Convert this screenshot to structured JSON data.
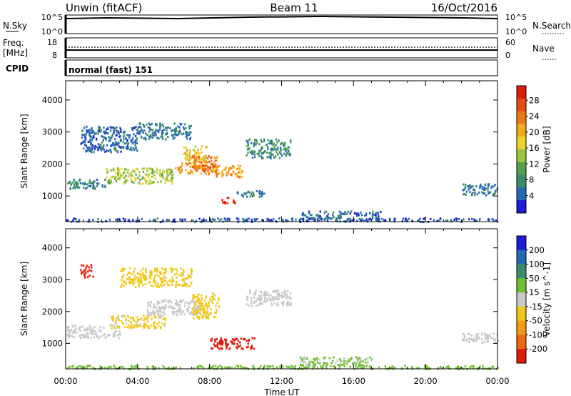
{
  "header": {
    "station": "Unwin (fitACF)",
    "beam": "Beam 11",
    "date": "16/Oct/2016"
  },
  "noise_panel": {
    "left_label": "N.Sky",
    "right_label": "N.Search",
    "y_ticks": [
      "10^5",
      "10^0"
    ]
  },
  "freq_panel": {
    "left_label_1": "Freq.",
    "left_label_2": "[MHz]",
    "left_ticks": [
      "18",
      "8"
    ],
    "right_label": "Nave",
    "right_ticks": [
      "60",
      "0"
    ]
  },
  "cpid_panel": {
    "label": "CPID",
    "mode": "normal (fast) 151"
  },
  "chart_data": [
    {
      "type": "heatmap",
      "ylabel": "Slant Range [km]",
      "xlabel": "Time UT",
      "x_ticks": [
        "00:00",
        "04:00",
        "08:00",
        "12:00",
        "16:00",
        "20:00",
        "00:00"
      ],
      "x_range_hours": [
        0,
        24
      ],
      "y_ticks": [
        1000,
        2000,
        3000,
        4000
      ],
      "ylim": [
        200,
        4600
      ],
      "colorbar": {
        "label": "Power [dB]",
        "ticks": [
          "4",
          "8",
          "12",
          "16",
          "20",
          "24",
          "28"
        ],
        "range": [
          0,
          30
        ],
        "colors": [
          "#1c1cd8",
          "#2468b8",
          "#3c8c6c",
          "#54a050",
          "#9cc43c",
          "#f0d22c",
          "#f4a81c",
          "#f07814",
          "#e84c10",
          "#e01c08"
        ]
      },
      "regions": [
        {
          "t0": 0.0,
          "t1": 2.2,
          "r0": 1250,
          "r1": 1550,
          "value": 7
        },
        {
          "t0": 2.2,
          "t1": 6.0,
          "r0": 1400,
          "r1": 1900,
          "value": 14
        },
        {
          "t0": 6.0,
          "t1": 8.3,
          "r0": 1700,
          "r1": 2100,
          "value": 20
        },
        {
          "t0": 6.5,
          "t1": 7.8,
          "r0": 2100,
          "r1": 2600,
          "value": 17
        },
        {
          "t0": 7.0,
          "t1": 8.4,
          "r0": 1800,
          "r1": 2300,
          "value": 23
        },
        {
          "t0": 8.3,
          "t1": 9.8,
          "r0": 1600,
          "r1": 2000,
          "value": 20
        },
        {
          "t0": 8.6,
          "t1": 9.4,
          "r0": 800,
          "r1": 1000,
          "value": 28
        },
        {
          "t0": 0.8,
          "t1": 4.0,
          "r0": 2400,
          "r1": 3200,
          "value": 5
        },
        {
          "t0": 4.0,
          "t1": 7.0,
          "r0": 2800,
          "r1": 3300,
          "value": 6
        },
        {
          "t0": 10.0,
          "t1": 12.5,
          "r0": 2200,
          "r1": 2800,
          "value": 8
        },
        {
          "t0": 9.5,
          "t1": 11.0,
          "r0": 1000,
          "r1": 1200,
          "value": 6
        },
        {
          "t0": 13.0,
          "t1": 17.5,
          "r0": 300,
          "r1": 550,
          "value": 5
        },
        {
          "t0": 0.0,
          "t1": 24.0,
          "r0": 220,
          "r1": 330,
          "value": 4
        },
        {
          "t0": 22.0,
          "t1": 24.0,
          "r0": 1050,
          "r1": 1400,
          "value": 6
        }
      ]
    },
    {
      "type": "heatmap",
      "ylabel": "Slant Range [km]",
      "xlabel": "Time UT",
      "x_ticks": [
        "00:00",
        "04:00",
        "08:00",
        "12:00",
        "16:00",
        "20:00",
        "00:00"
      ],
      "x_range_hours": [
        0,
        24
      ],
      "y_ticks": [
        1000,
        2000,
        3000,
        4000
      ],
      "ylim": [
        200,
        4600
      ],
      "colorbar": {
        "label": "Velocity [m s^-1]",
        "ticks": [
          "200",
          "100",
          "50",
          "15",
          "-15",
          "-50",
          "-100",
          "-200"
        ],
        "range": [
          -250,
          250
        ],
        "colors": [
          "#1c1cd8",
          "#2468b8",
          "#3c8c6c",
          "#6cc030",
          "#c8c8c8",
          "#f0c81c",
          "#f49a14",
          "#f06414",
          "#e01c08"
        ]
      },
      "regions": [
        {
          "t0": 0.0,
          "t1": 3.0,
          "r0": 1200,
          "r1": 1600,
          "value": 0
        },
        {
          "t0": 2.5,
          "t1": 5.5,
          "r0": 1500,
          "r1": 1900,
          "value": -35
        },
        {
          "t0": 4.5,
          "t1": 7.5,
          "r0": 1900,
          "r1": 2400,
          "value": 0
        },
        {
          "t0": 7.0,
          "t1": 8.5,
          "r0": 1800,
          "r1": 2600,
          "value": -60
        },
        {
          "t0": 8.0,
          "t1": 10.5,
          "r0": 850,
          "r1": 1200,
          "value": -220
        },
        {
          "t0": 0.8,
          "t1": 1.5,
          "r0": 3100,
          "r1": 3500,
          "value": -220
        },
        {
          "t0": 3.0,
          "t1": 7.0,
          "r0": 2800,
          "r1": 3400,
          "value": -50
        },
        {
          "t0": 10.0,
          "t1": 12.5,
          "r0": 2200,
          "r1": 2700,
          "value": 0
        },
        {
          "t0": 13.0,
          "t1": 17.0,
          "r0": 300,
          "r1": 600,
          "value": 30
        },
        {
          "t0": 0.0,
          "t1": 24.0,
          "r0": 220,
          "r1": 330,
          "value": 40
        },
        {
          "t0": 22.0,
          "t1": 24.0,
          "r0": 1050,
          "r1": 1350,
          "value": 0
        }
      ]
    }
  ]
}
